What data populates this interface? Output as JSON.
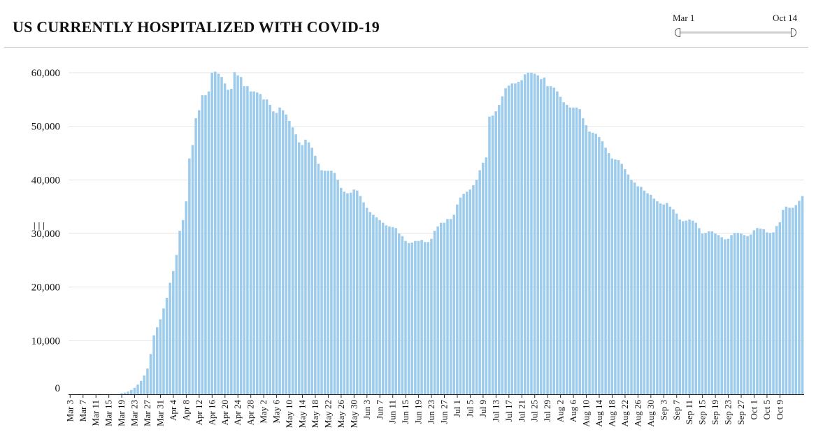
{
  "title": "US CURRENTLY HOSPITALIZED WITH COVID-19",
  "range_slider": {
    "start_label": "Mar 1",
    "end_label": "Oct 14"
  },
  "colors": {
    "bar": "#9ccbec",
    "grid": "#e6e6e6",
    "axis": "#222222"
  },
  "icons": {
    "cursor": "column-resize-cursor-icon"
  },
  "chart_data": {
    "type": "bar",
    "title": "US CURRENTLY HOSPITALIZED WITH COVID-19",
    "xlabel": "",
    "ylabel": "",
    "ylim": [
      0,
      60000
    ],
    "y_ticks": [
      0,
      10000,
      20000,
      30000,
      40000,
      50000,
      60000
    ],
    "y_tick_labels": [
      "0",
      "10,000",
      "20,000",
      "30,000",
      "40,000",
      "50,000",
      "60,000"
    ],
    "grid": true,
    "x_start": "Mar 3",
    "x_end": "Oct 13",
    "x_ticks": [
      "Mar 3",
      "Mar 7",
      "Mar 11",
      "Mar 15",
      "Mar 19",
      "Mar 23",
      "Mar 27",
      "Mar 31",
      "Apr 4",
      "Apr 8",
      "Apr 12",
      "Apr 16",
      "Apr 20",
      "Apr 24",
      "Apr 28",
      "May 2",
      "May 6",
      "May 10",
      "May 14",
      "May 18",
      "May 22",
      "May 26",
      "May 30",
      "Jun 3",
      "Jun 7",
      "Jun 11",
      "Jun 15",
      "Jun 19",
      "Jun 23",
      "Jun 27",
      "Jul 1",
      "Jul 5",
      "Jul 9",
      "Jul 13",
      "Jul 17",
      "Jul 21",
      "Jul 25",
      "Jul 29",
      "Aug 2",
      "Aug 6",
      "Aug 10",
      "Aug 14",
      "Aug 18",
      "Aug 22",
      "Aug 26",
      "Aug 30",
      "Sep 3",
      "Sep 7",
      "Sep 11",
      "Sep 15",
      "Sep 19",
      "Sep 23",
      "Sep 27",
      "Oct 1",
      "Oct 5",
      "Oct 9"
    ],
    "values": [
      0,
      0,
      0,
      0,
      0,
      0,
      0,
      0,
      0,
      0,
      0,
      0,
      0,
      0,
      0,
      0,
      200,
      300,
      500,
      800,
      1200,
      1800,
      2500,
      3500,
      4800,
      7500,
      11000,
      12500,
      14000,
      16000,
      18000,
      20800,
      23000,
      26000,
      30500,
      32500,
      36000,
      44000,
      46500,
      51500,
      53000,
      55800,
      55800,
      56500,
      60000,
      60200,
      59800,
      59200,
      58000,
      56800,
      57000,
      60100,
      59500,
      59200,
      57500,
      57500,
      56500,
      56500,
      56300,
      56000,
      55000,
      55000,
      54000,
      52800,
      52500,
      53500,
      53000,
      52200,
      51000,
      49800,
      48500,
      47000,
      46500,
      47500,
      47000,
      46000,
      44500,
      43000,
      41800,
      41700,
      41700,
      41700,
      41300,
      40000,
      38500,
      37800,
      37500,
      37600,
      38200,
      38000,
      37000,
      35800,
      34800,
      34000,
      33500,
      33000,
      32500,
      32000,
      31500,
      31300,
      31200,
      31000,
      30000,
      29500,
      28600,
      28200,
      28300,
      28600,
      28600,
      28800,
      28400,
      28400,
      29000,
      30500,
      31300,
      32000,
      32000,
      32700,
      32700,
      33500,
      35400,
      36700,
      37400,
      37800,
      38200,
      39000,
      40000,
      41800,
      43200,
      44200,
      51800,
      52000,
      52800,
      54000,
      55600,
      57100,
      57600,
      58000,
      58000,
      58300,
      58600,
      59700,
      60000,
      60000,
      59800,
      59500,
      58800,
      59100,
      57500,
      57500,
      57200,
      56500,
      55500,
      54500,
      54000,
      53500,
      53500,
      53500,
      53200,
      51500,
      50200,
      49000,
      48800,
      48600,
      48000,
      47200,
      46000,
      45000,
      44000,
      43800,
      43700,
      43000,
      42000,
      41000,
      40000,
      39500,
      38800,
      38700,
      38000,
      37500,
      37200,
      36500,
      36000,
      35600,
      35400,
      35700,
      35000,
      34500,
      33700,
      32600,
      32300,
      32400,
      32600,
      32400,
      32000,
      31000,
      30000,
      30100,
      30400,
      30400,
      30000,
      29700,
      29300,
      28900,
      29000,
      29700,
      30100,
      30100,
      30000,
      29700,
      29500,
      29800,
      30600,
      31000,
      30900,
      30800,
      30200,
      30100,
      30200,
      31400,
      32100,
      34400,
      35000,
      34800,
      34800,
      35300,
      36100,
      37000
    ]
  }
}
